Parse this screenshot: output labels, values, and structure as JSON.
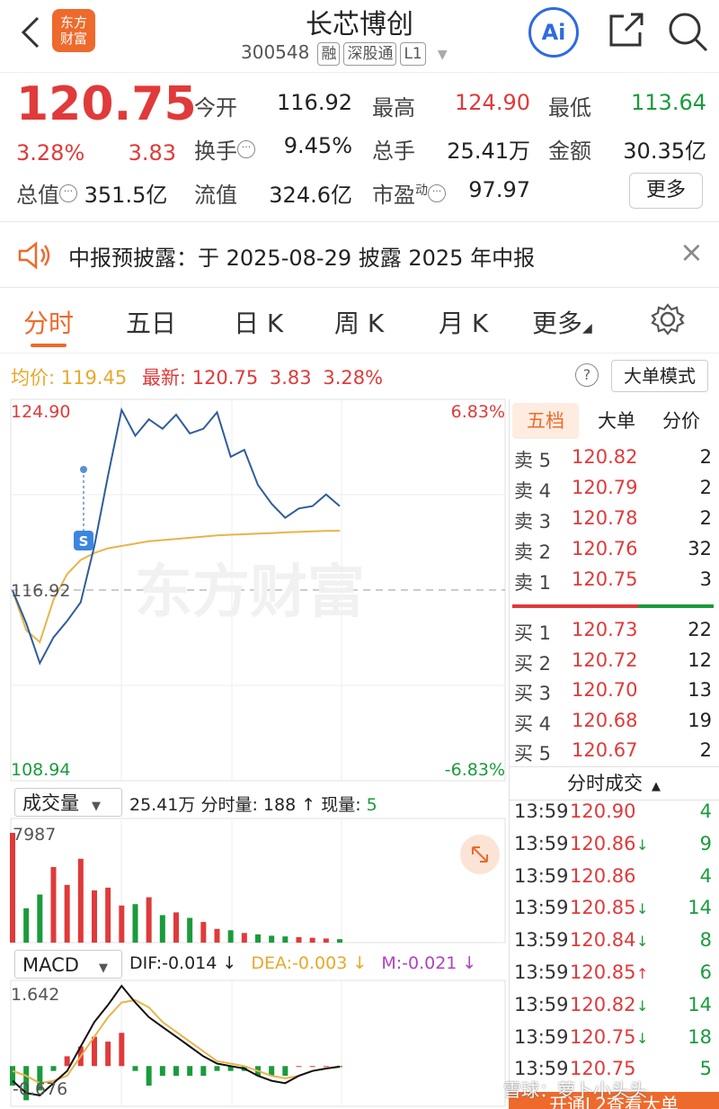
{
  "header": {
    "back_icon": "chevron-left-icon",
    "logo_text": "东方\n财富",
    "logo_line1": "东方",
    "logo_line2": "财富",
    "title": "长芯博创",
    "code": "300548",
    "badges": [
      "融",
      "深股通",
      "L1"
    ],
    "ai_label": "Ai",
    "share_icon": "share-icon",
    "search_icon": "search-icon"
  },
  "quote": {
    "price": "120.75",
    "change_pct": "3.28%",
    "change": "3.83",
    "open_label": "今开",
    "open": "116.92",
    "high_label": "最高",
    "high": "124.90",
    "low_label": "最低",
    "low": "113.64",
    "turnover_label": "换手",
    "turnover": "9.45%",
    "volume_label": "总手",
    "volume": "25.41万",
    "amount_label": "金额",
    "amount": "30.35亿",
    "mcap_label": "总值",
    "mcap": "351.5亿",
    "float_label": "流值",
    "float_cap": "324.6亿",
    "pe_label": "市盈",
    "pe_sup": "动",
    "pe": "97.97",
    "more_label": "更多"
  },
  "notice": {
    "text": "中报预披露：于 2025-08-29 披露 2025 年中报",
    "close": "×"
  },
  "tabs": [
    {
      "label": "分时",
      "active": true
    },
    {
      "label": "五日"
    },
    {
      "label": "日 K"
    },
    {
      "label": "周 K"
    },
    {
      "label": "月 K"
    },
    {
      "label": "更多"
    }
  ],
  "infobar": {
    "avg_label": "均价:",
    "avg": "119.45",
    "latest_label": "最新:",
    "latest": "120.75",
    "change": "3.83",
    "change_pct": "3.28%",
    "help": "?",
    "mode_button": "大单模式"
  },
  "chart_axes": {
    "price_high": "124.90",
    "price_low": "108.94",
    "pct_high": "6.83%",
    "pct_low": "-6.83%",
    "prev_close": "116.92",
    "marker_label": "S",
    "watermark": "东方财富"
  },
  "volume_panel": {
    "selector": "成交量",
    "summary_total": "25.41万",
    "summary_label": "分时量:",
    "summary_vol": "188",
    "summary_arrow": "↑",
    "current_label": "现量:",
    "current": "5",
    "max": "7987"
  },
  "macd_panel": {
    "selector": "MACD",
    "dif": "DIF:-0.014 ↓",
    "dea": "DEA:-0.003 ↓",
    "m": "M:-0.021 ↓",
    "max": "1.642",
    "min": "-0.676"
  },
  "orderbook": {
    "tabs": [
      "五档",
      "大单",
      "分价"
    ],
    "asks": [
      {
        "label": "卖 5",
        "price": "120.82",
        "vol": "2"
      },
      {
        "label": "卖 4",
        "price": "120.79",
        "vol": "2"
      },
      {
        "label": "卖 3",
        "price": "120.78",
        "vol": "2"
      },
      {
        "label": "卖 2",
        "price": "120.76",
        "vol": "32"
      },
      {
        "label": "卖 1",
        "price": "120.75",
        "vol": "3"
      }
    ],
    "bids": [
      {
        "label": "买 1",
        "price": "120.73",
        "vol": "22"
      },
      {
        "label": "买 2",
        "price": "120.72",
        "vol": "12"
      },
      {
        "label": "买 3",
        "price": "120.70",
        "vol": "13"
      },
      {
        "label": "买 4",
        "price": "120.68",
        "vol": "19"
      },
      {
        "label": "买 5",
        "price": "120.67",
        "vol": "2"
      }
    ]
  },
  "trades": {
    "title": "分时成交",
    "rows": [
      {
        "time": "13:59",
        "price": "120.90",
        "arrow": "",
        "vol": "4"
      },
      {
        "time": "13:59",
        "price": "120.86",
        "arrow": "↓",
        "vol": "9"
      },
      {
        "time": "13:59",
        "price": "120.86",
        "arrow": "",
        "vol": "4"
      },
      {
        "time": "13:59",
        "price": "120.85",
        "arrow": "↓",
        "vol": "14"
      },
      {
        "time": "13:59",
        "price": "120.84",
        "arrow": "↓",
        "vol": "8"
      },
      {
        "time": "13:59",
        "price": "120.85",
        "arrow": "↑",
        "vol": "6"
      },
      {
        "time": "13:59",
        "price": "120.82",
        "arrow": "↓",
        "vol": "14"
      },
      {
        "time": "13:59",
        "price": "120.75",
        "arrow": "↓",
        "vol": "18"
      },
      {
        "time": "13:59",
        "price": "120.75",
        "arrow": "",
        "vol": "5"
      }
    ],
    "footer": "开通L2查看大单",
    "watermark": "雪球：萝卜小头头"
  },
  "colors": {
    "up": "#e03a3a",
    "down": "#1a9b3c",
    "price_line": "#2f5d9b",
    "avg_line": "#e8b44a",
    "accent": "#ee6a2c"
  },
  "chart_data": {
    "type": "line",
    "series": [
      {
        "values": [
          116.9,
          115.5,
          113.8,
          114.9,
          115.6,
          116.4,
          118.8,
          121.8,
          124.6,
          123.5,
          124.2,
          123.8,
          124.4,
          123.6,
          123.8,
          124.5,
          122.6,
          122.9,
          121.4,
          120.6,
          120.0,
          120.4,
          120.5,
          121.0,
          120.5
        ]
      },
      {
        "values": [
          116.9,
          115.2,
          114.7,
          116.5,
          117.6,
          118.2,
          118.5,
          118.7,
          118.8,
          118.9,
          119.0,
          119.05,
          119.1,
          119.15,
          119.2,
          119.25,
          119.28,
          119.3,
          119.33,
          119.35,
          119.38,
          119.4,
          119.42,
          119.44,
          119.45
        ]
      }
    ],
    "ylim": [
      108.94,
      124.9
    ],
    "prev_close": 116.92,
    "volume": [
      7987,
      2500,
      3500,
      5500,
      4200,
      6100,
      3800,
      4000,
      2700,
      2800,
      3300,
      2000,
      2200,
      1800,
      1500,
      1000,
      900,
      700,
      600,
      500,
      450,
      400,
      350,
      300,
      250
    ],
    "macd": {
      "dif": [
        -0.3,
        -0.55,
        -0.6,
        -0.35,
        -0.1,
        0.4,
        0.9,
        1.25,
        1.64,
        1.3,
        1.0,
        0.8,
        0.6,
        0.4,
        0.2,
        0.05,
        0.0,
        -0.05,
        -0.2,
        -0.3,
        -0.35,
        -0.2,
        -0.1,
        -0.05,
        -0.014
      ],
      "dea": [
        -0.1,
        -0.2,
        -0.35,
        -0.3,
        -0.2,
        0.2,
        0.6,
        1.0,
        1.3,
        1.35,
        1.2,
        0.9,
        0.7,
        0.5,
        0.3,
        0.1,
        0.05,
        0.0,
        -0.1,
        -0.2,
        -0.25,
        -0.2,
        -0.1,
        -0.05,
        -0.003
      ],
      "ylim": [
        -0.676,
        1.642
      ]
    }
  }
}
